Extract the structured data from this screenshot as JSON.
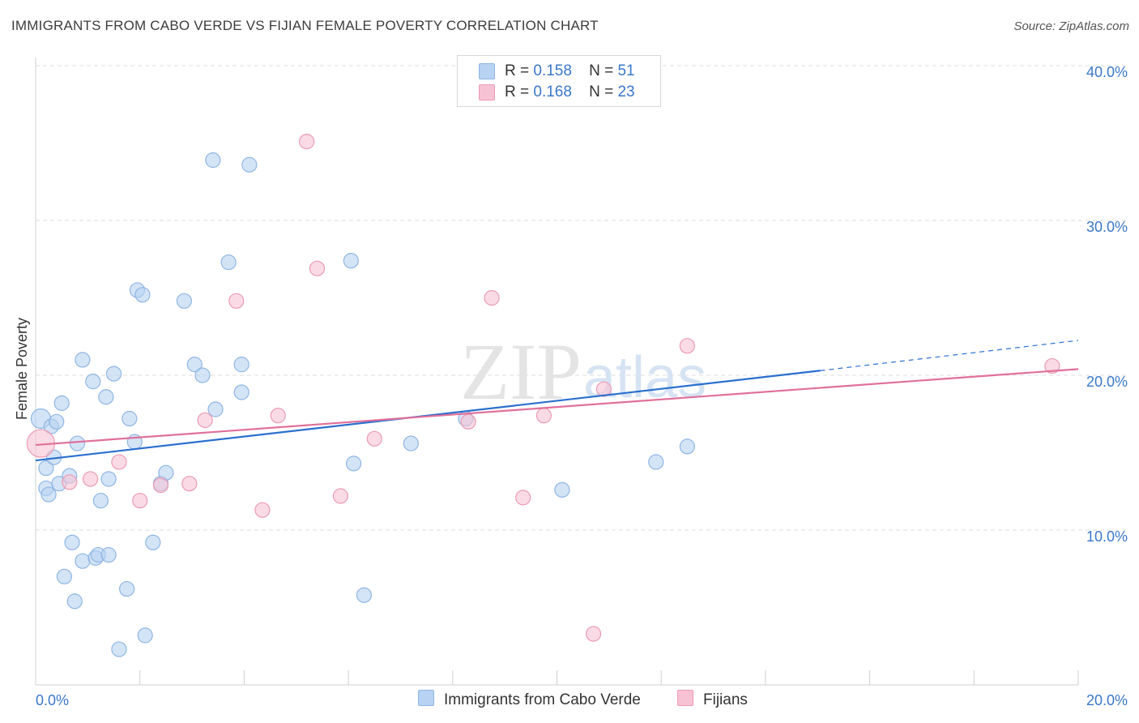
{
  "title": "IMMIGRANTS FROM CABO VERDE VS FIJIAN FEMALE POVERTY CORRELATION CHART",
  "source": "Source: ZipAtlas.com",
  "watermark": {
    "zip": "ZIP",
    "atlas": "atlas"
  },
  "stats": [
    {
      "r_label": "R =",
      "r_value": "0.158",
      "n_label": "N =",
      "n_value": "51"
    },
    {
      "r_label": "R =",
      "r_value": "0.168",
      "n_label": "N =",
      "n_value": "23"
    }
  ],
  "legend": [
    "Immigrants from Cabo Verde",
    "Fijians"
  ],
  "colors": {
    "blue_fill": "#b7d2f2",
    "blue_stroke": "#8fb5e3",
    "blue_line": "#2a6fce",
    "pink_fill": "#f7c3d4",
    "pink_stroke": "#ec9ab4",
    "pink_line": "#e0709a",
    "axis_text": "#3a78c9",
    "grid": "#dedede"
  },
  "chart_data": {
    "type": "scatter",
    "title": "IMMIGRANTS FROM CABO VERDE VS FIJIAN FEMALE POVERTY CORRELATION CHART",
    "xlabel": "",
    "ylabel": "Female Poverty",
    "xlim": [
      0,
      20
    ],
    "ylim": [
      0,
      40.5
    ],
    "x_tick_labels": [
      "0.0%",
      "20.0%"
    ],
    "y_ticks": [
      10,
      20,
      30,
      40
    ],
    "y_tick_labels": [
      "10.0%",
      "20.0%",
      "30.0%",
      "40.0%"
    ],
    "grid": true,
    "legend_position": "bottom",
    "series": [
      {
        "name": "Immigrants from Cabo Verde",
        "color": "#b7d2f2",
        "points": [
          [
            0.1,
            17.2
          ],
          [
            0.2,
            14.0
          ],
          [
            0.2,
            12.7
          ],
          [
            0.25,
            12.3
          ],
          [
            0.3,
            16.7
          ],
          [
            0.35,
            14.7
          ],
          [
            0.4,
            17.0
          ],
          [
            0.45,
            13.0
          ],
          [
            0.5,
            18.2
          ],
          [
            0.55,
            7.0
          ],
          [
            0.65,
            13.5
          ],
          [
            0.7,
            9.2
          ],
          [
            0.75,
            5.4
          ],
          [
            0.8,
            15.6
          ],
          [
            0.9,
            21.0
          ],
          [
            0.9,
            8.0
          ],
          [
            1.1,
            19.6
          ],
          [
            1.15,
            8.2
          ],
          [
            1.2,
            8.4
          ],
          [
            1.25,
            11.9
          ],
          [
            1.35,
            18.6
          ],
          [
            1.4,
            8.4
          ],
          [
            1.4,
            13.3
          ],
          [
            1.5,
            20.1
          ],
          [
            1.6,
            2.3
          ],
          [
            1.75,
            6.2
          ],
          [
            1.8,
            17.2
          ],
          [
            1.9,
            15.7
          ],
          [
            1.95,
            25.5
          ],
          [
            2.05,
            25.2
          ],
          [
            2.1,
            3.2
          ],
          [
            2.25,
            9.2
          ],
          [
            2.4,
            13.0
          ],
          [
            2.5,
            13.7
          ],
          [
            2.85,
            24.8
          ],
          [
            3.05,
            20.7
          ],
          [
            3.2,
            20.0
          ],
          [
            3.4,
            33.9
          ],
          [
            3.45,
            17.8
          ],
          [
            3.7,
            27.3
          ],
          [
            3.95,
            18.9
          ],
          [
            3.95,
            20.7
          ],
          [
            4.1,
            33.6
          ],
          [
            6.05,
            27.4
          ],
          [
            6.1,
            14.3
          ],
          [
            6.3,
            5.8
          ],
          [
            7.2,
            15.6
          ],
          [
            8.25,
            17.2
          ],
          [
            10.1,
            12.6
          ],
          [
            11.9,
            14.4
          ],
          [
            12.5,
            15.4
          ]
        ],
        "trend": {
          "x": [
            0.0,
            15.05
          ],
          "y": [
            14.5,
            20.3
          ]
        },
        "trend_extension": {
          "x": [
            15.05,
            20.0
          ],
          "y": [
            20.3,
            22.25
          ]
        }
      },
      {
        "name": "Fijians",
        "color": "#f7c3d4",
        "points": [
          [
            0.1,
            15.6
          ],
          [
            0.65,
            13.1
          ],
          [
            1.05,
            13.3
          ],
          [
            1.6,
            14.4
          ],
          [
            2.0,
            11.9
          ],
          [
            2.4,
            12.9
          ],
          [
            2.95,
            13.0
          ],
          [
            3.25,
            17.1
          ],
          [
            3.85,
            24.8
          ],
          [
            4.35,
            11.3
          ],
          [
            4.65,
            17.4
          ],
          [
            5.2,
            35.1
          ],
          [
            5.4,
            26.9
          ],
          [
            5.85,
            12.2
          ],
          [
            6.5,
            15.9
          ],
          [
            8.3,
            17.0
          ],
          [
            8.75,
            25.0
          ],
          [
            9.35,
            12.1
          ],
          [
            9.75,
            17.4
          ],
          [
            10.7,
            3.3
          ],
          [
            10.9,
            19.1
          ],
          [
            12.5,
            21.9
          ],
          [
            19.5,
            20.6
          ]
        ],
        "trend": {
          "x": [
            0.0,
            20.0
          ],
          "y": [
            15.5,
            20.4
          ]
        }
      }
    ]
  }
}
